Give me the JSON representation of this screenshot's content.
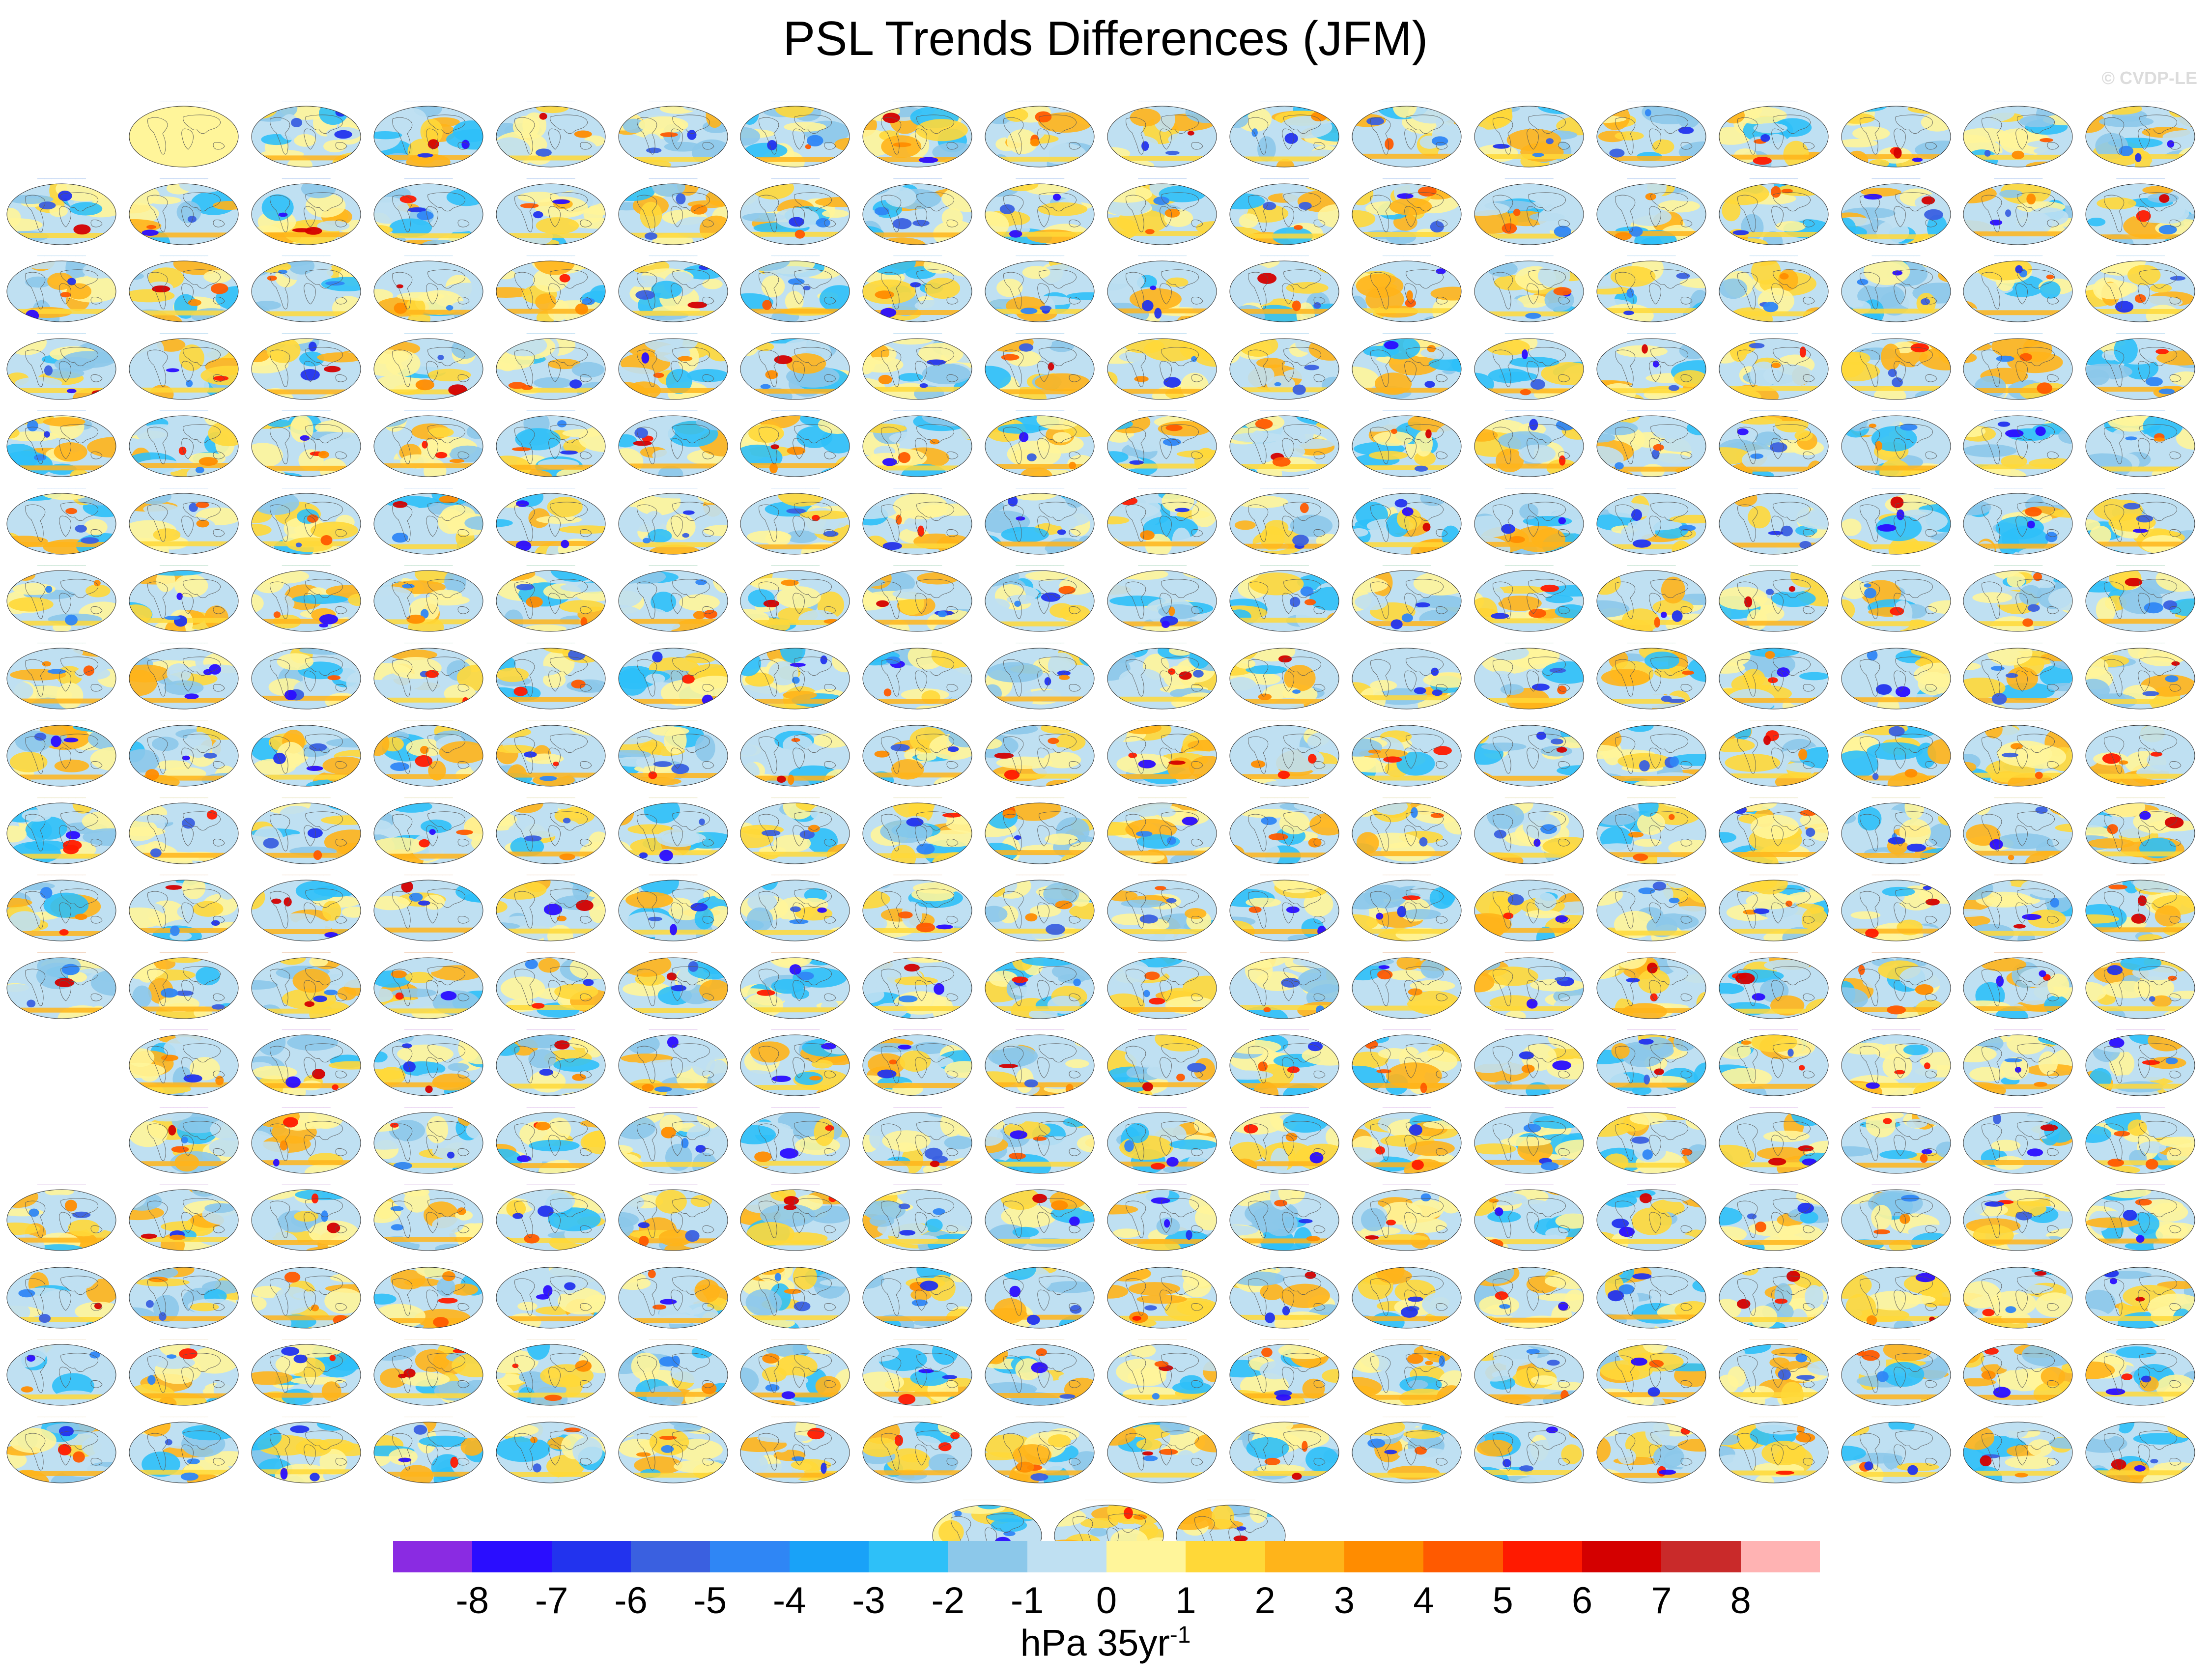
{
  "title": "PSL Trends Differences (JFM)",
  "watermark": "© CVDP-LE",
  "chart_data": {
    "type": "heatmap",
    "title": "PSL Trends Differences (JFM)",
    "description_panels": "Grid of global map panels (robinson-like ellipses) of sea level pressure trend differences",
    "units_main": "hPa 35yr",
    "units_exponent": "-1",
    "colorbar": {
      "ticks": [
        "-8",
        "-7",
        "-6",
        "-5",
        "-4",
        "-3",
        "-2",
        "-1",
        "0",
        "1",
        "2",
        "3",
        "4",
        "5",
        "6",
        "7",
        "8"
      ],
      "colors": [
        "#8a2be2",
        "#2a0dff",
        "#2233ee",
        "#3a60e0",
        "#2f86f5",
        "#19a2f8",
        "#2ec0f8",
        "#8cc8ea",
        "#bfe0f2",
        "#fff59a",
        "#ffd838",
        "#ffb41a",
        "#ff8c00",
        "#ff5a00",
        "#ff1a00",
        "#d40000",
        "#c92a2a",
        "#ffb3b3"
      ]
    },
    "layout": {
      "rows": 18,
      "columns": 18,
      "empty_cells": [
        [
          0,
          0
        ],
        [
          12,
          0
        ],
        [
          13,
          0
        ]
      ],
      "bottom_row_panels": 3
    },
    "panel_title_colors": [
      "#1e6ad2",
      "#1e8ad2",
      "#5aa0e6",
      "#2a9a5a",
      "#b0a020",
      "#d06a20",
      "#a040c0",
      "#c8a0d8",
      "#d8b070"
    ]
  }
}
